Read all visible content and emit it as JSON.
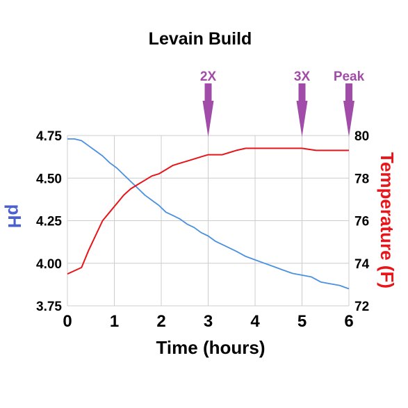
{
  "chart_data": {
    "type": "line",
    "title": "Levain Build",
    "xlabel": "Time (hours)",
    "ylabel_left": "pH",
    "ylabel_right": "Temperature (F)",
    "xlim": [
      0,
      6
    ],
    "ylim_left": [
      3.75,
      4.75
    ],
    "ylim_right": [
      72,
      80
    ],
    "xticks": [
      "0",
      "1",
      "2",
      "3",
      "4",
      "5",
      "6"
    ],
    "yticks_left": [
      "3.75",
      "4.00",
      "4.25",
      "4.50",
      "4.75"
    ],
    "yticks_right": [
      "72",
      "74",
      "76",
      "78",
      "80"
    ],
    "grid": true,
    "colors": {
      "ph": "#4a90e2",
      "temperature": "#e8141a",
      "annotation": "#a04ca8",
      "ylabel_left": "#4a5fd0",
      "ylabel_right": "#e8141a"
    },
    "series": [
      {
        "axis": "left",
        "x": [
          0,
          0.15,
          0.3,
          0.45,
          0.6,
          0.75,
          0.9,
          1.05,
          1.2,
          1.35,
          1.5,
          1.65,
          1.8,
          1.95,
          2.1,
          2.25,
          2.4,
          2.55,
          2.7,
          2.85,
          3.0,
          3.15,
          3.3,
          3.45,
          3.6,
          3.8,
          4.0,
          4.2,
          4.4,
          4.6,
          4.8,
          5.0,
          5.2,
          5.4,
          5.6,
          5.8,
          6.0
        ],
        "y": [
          4.73,
          4.73,
          4.72,
          4.69,
          4.66,
          4.63,
          4.59,
          4.56,
          4.52,
          4.48,
          4.44,
          4.4,
          4.37,
          4.34,
          4.3,
          4.28,
          4.26,
          4.23,
          4.21,
          4.18,
          4.16,
          4.13,
          4.11,
          4.09,
          4.07,
          4.04,
          4.02,
          4.0,
          3.98,
          3.96,
          3.94,
          3.93,
          3.92,
          3.89,
          3.88,
          3.87,
          3.85
        ]
      },
      {
        "axis": "right",
        "x": [
          0,
          0.3,
          0.45,
          0.6,
          0.75,
          0.9,
          1.05,
          1.2,
          1.35,
          1.5,
          1.65,
          1.8,
          1.95,
          2.1,
          2.25,
          2.4,
          2.55,
          2.7,
          2.85,
          3.0,
          3.15,
          3.3,
          3.45,
          3.6,
          3.8,
          4.0,
          4.2,
          4.5,
          5.0,
          5.3,
          5.6,
          6.0
        ],
        "y": [
          73.5,
          73.8,
          74.6,
          75.3,
          76.0,
          76.4,
          76.8,
          77.2,
          77.5,
          77.7,
          77.9,
          78.1,
          78.2,
          78.4,
          78.6,
          78.7,
          78.8,
          78.9,
          79.0,
          79.1,
          79.1,
          79.1,
          79.2,
          79.3,
          79.4,
          79.4,
          79.4,
          79.4,
          79.4,
          79.3,
          79.3,
          79.3
        ]
      }
    ],
    "annotations": [
      {
        "label": "2X",
        "x": 3.0
      },
      {
        "label": "3X",
        "x": 5.0
      },
      {
        "label": "Peak",
        "x": 6.0
      }
    ]
  }
}
